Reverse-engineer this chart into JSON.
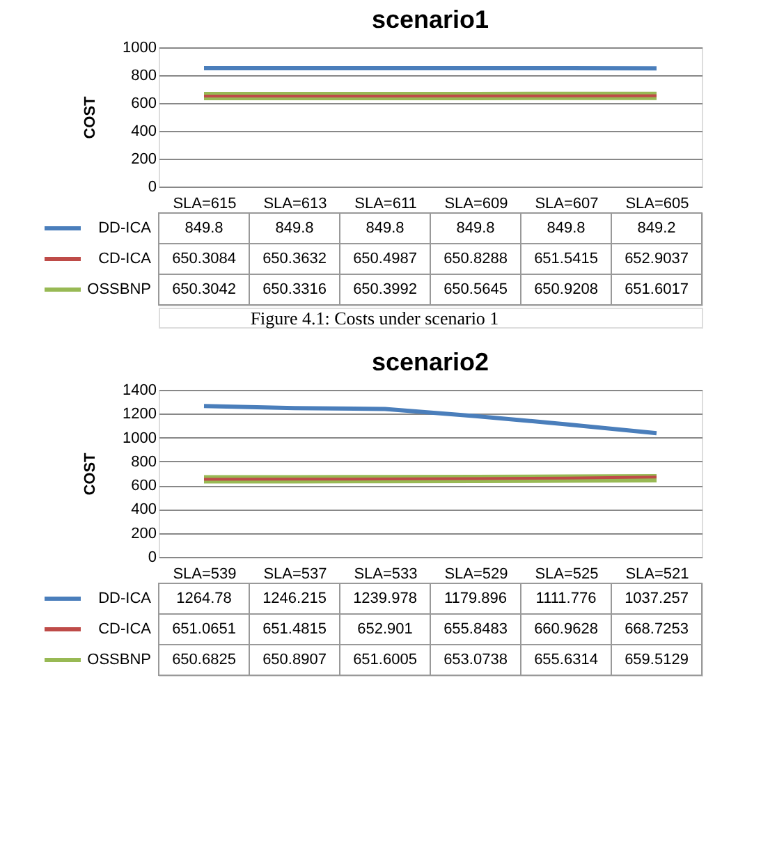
{
  "chart_data": [
    {
      "type": "line",
      "title": "scenario1",
      "ylabel": "COST",
      "categories": [
        "SLA=615",
        "SLA=613",
        "SLA=611",
        "SLA=609",
        "SLA=607",
        "SLA=605"
      ],
      "series": [
        {
          "name": "DD-ICA",
          "color": "#4a7ebb",
          "values": [
            849.8,
            849.8,
            849.8,
            849.8,
            849.8,
            849.2
          ]
        },
        {
          "name": "CD-ICA",
          "color": "#be4b48",
          "values": [
            650.3084,
            650.3632,
            650.4987,
            650.8288,
            651.5415,
            652.9037
          ]
        },
        {
          "name": "OSSBNP",
          "color": "#98b954",
          "values": [
            650.3042,
            650.3316,
            650.3992,
            650.5645,
            650.9208,
            651.6017
          ]
        }
      ],
      "ylim": [
        0,
        1000
      ],
      "yticks": [
        0,
        200,
        400,
        600,
        800,
        1000
      ],
      "grid": "y",
      "data_labels": true,
      "legend": "bottom",
      "marker": "none",
      "line_style": "solid",
      "annotations": [
        "Figure 4.1: Costs under scenario 1"
      ]
    },
    {
      "type": "line",
      "title": "scenario2",
      "ylabel": "COST",
      "categories": [
        "SLA=539",
        "SLA=537",
        "SLA=533",
        "SLA=529",
        "SLA=525",
        "SLA=521"
      ],
      "series": [
        {
          "name": "DD-ICA",
          "color": "#4a7ebb",
          "values": [
            1264.78,
            1246.215,
            1239.978,
            1179.896,
            1111.776,
            1037.257
          ]
        },
        {
          "name": "CD-ICA",
          "color": "#be4b48",
          "values": [
            651.0651,
            651.4815,
            652.901,
            655.8483,
            660.9628,
            668.7253
          ]
        },
        {
          "name": "OSSBNP",
          "color": "#98b954",
          "values": [
            650.6825,
            650.8907,
            651.6005,
            653.0738,
            655.6314,
            659.5129
          ]
        }
      ],
      "ylim": [
        0,
        1400
      ],
      "yticks": [
        0,
        200,
        400,
        600,
        800,
        1000,
        1200,
        1400
      ],
      "grid": "y",
      "data_labels": true,
      "legend": "bottom",
      "marker": "none",
      "line_style": "solid"
    }
  ]
}
